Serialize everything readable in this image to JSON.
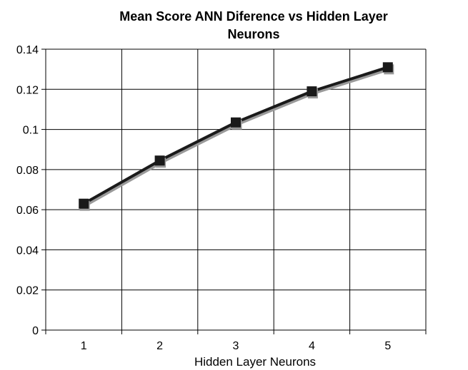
{
  "chart_data": {
    "type": "line",
    "title_lines": [
      "Mean Score ANN Diference vs Hidden Layer",
      "Neurons"
    ],
    "xlabel": "Hidden Layer Neurons",
    "ylabel": "",
    "categories": [
      "1",
      "2",
      "3",
      "4",
      "5"
    ],
    "series": [
      {
        "values": [
          0.063,
          0.0845,
          0.1035,
          0.119,
          0.131
        ]
      }
    ],
    "ylim": [
      0,
      0.14
    ],
    "yticks": [
      "0",
      "0.02",
      "0.04",
      "0.06",
      "0.08",
      "0.1",
      "0.12",
      "0.14"
    ],
    "grid": true,
    "legend": "none",
    "colors": {
      "line": "#1a1a1a",
      "shadow": "#9a9a9a",
      "marker": "#1a1a1a",
      "grid": "#000000"
    }
  }
}
